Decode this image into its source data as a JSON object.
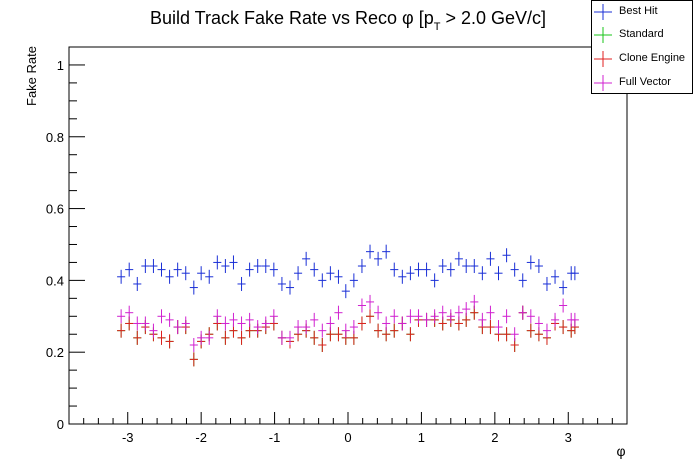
{
  "chart_data": {
    "type": "scatter",
    "title": "Build Track Fake Rate vs Reco φ [p",
    "title_sub": "T",
    "title_tail": " > 2.0 GeV/c]",
    "xlabel": "φ",
    "ylabel": "Fake Rate",
    "xlim": [
      -3.8,
      3.8
    ],
    "ylim": [
      0,
      1.05
    ],
    "xticks": [
      -3,
      -2,
      -1,
      0,
      1,
      2,
      3
    ],
    "yticks": [
      0,
      0.2,
      0.4,
      0.6,
      0.8,
      1
    ],
    "ytick_labels": [
      "0",
      "0.2",
      "0.4",
      "0.6",
      "0.8",
      "1"
    ],
    "grid": false,
    "legend_position": "top-right",
    "x": [
      -3.09,
      -2.98,
      -2.87,
      -2.76,
      -2.65,
      -2.54,
      -2.43,
      -2.32,
      -2.21,
      -2.1,
      -2.0,
      -1.89,
      -1.78,
      -1.67,
      -1.56,
      -1.45,
      -1.34,
      -1.23,
      -1.12,
      -1.01,
      -0.9,
      -0.79,
      -0.68,
      -0.57,
      -0.46,
      -0.35,
      -0.24,
      -0.13,
      -0.03,
      0.08,
      0.19,
      0.3,
      0.41,
      0.52,
      0.63,
      0.74,
      0.85,
      0.96,
      1.07,
      1.18,
      1.29,
      1.4,
      1.51,
      1.61,
      1.72,
      1.83,
      1.94,
      2.05,
      2.16,
      2.27,
      2.38,
      2.49,
      2.6,
      2.71,
      2.82,
      2.93,
      3.04,
      3.09
    ],
    "series": [
      {
        "name": "Best Hit",
        "color": "#1a2fd6",
        "values": [
          0.41,
          0.43,
          0.39,
          0.44,
          0.44,
          0.43,
          0.41,
          0.43,
          0.42,
          0.38,
          0.42,
          0.41,
          0.45,
          0.44,
          0.45,
          0.39,
          0.43,
          0.44,
          0.44,
          0.43,
          0.39,
          0.38,
          0.42,
          0.46,
          0.43,
          0.4,
          0.42,
          0.41,
          0.37,
          0.4,
          0.44,
          0.48,
          0.46,
          0.48,
          0.43,
          0.41,
          0.42,
          0.43,
          0.43,
          0.4,
          0.44,
          0.43,
          0.46,
          0.44,
          0.44,
          0.42,
          0.46,
          0.42,
          0.47,
          0.43,
          0.4,
          0.45,
          0.44,
          0.39,
          0.41,
          0.38,
          0.42,
          0.42
        ]
      },
      {
        "name": "Standard",
        "color": "#19c419",
        "values": [
          0.26,
          0.28,
          0.24,
          0.27,
          0.25,
          0.24,
          0.23,
          0.27,
          0.27,
          0.18,
          0.23,
          0.25,
          0.28,
          0.24,
          0.26,
          0.24,
          0.26,
          0.26,
          0.27,
          0.28,
          0.24,
          0.23,
          0.25,
          0.26,
          0.24,
          0.22,
          0.25,
          0.25,
          0.24,
          0.24,
          0.28,
          0.3,
          0.26,
          0.25,
          0.26,
          0.28,
          0.25,
          0.29,
          0.29,
          0.29,
          0.28,
          0.29,
          0.28,
          0.29,
          0.31,
          0.27,
          0.27,
          0.25,
          0.25,
          0.22,
          0.31,
          0.26,
          0.25,
          0.24,
          0.28,
          0.27,
          0.26,
          0.27
        ]
      },
      {
        "name": "Clone Engine",
        "color": "#e01f1f",
        "values": [
          0.26,
          0.28,
          0.24,
          0.27,
          0.25,
          0.24,
          0.23,
          0.27,
          0.27,
          0.18,
          0.23,
          0.25,
          0.28,
          0.24,
          0.26,
          0.24,
          0.26,
          0.26,
          0.27,
          0.28,
          0.24,
          0.23,
          0.25,
          0.26,
          0.24,
          0.22,
          0.25,
          0.25,
          0.24,
          0.24,
          0.28,
          0.3,
          0.26,
          0.25,
          0.26,
          0.28,
          0.25,
          0.29,
          0.29,
          0.29,
          0.28,
          0.29,
          0.28,
          0.29,
          0.31,
          0.27,
          0.27,
          0.25,
          0.25,
          0.22,
          0.31,
          0.26,
          0.25,
          0.24,
          0.28,
          0.27,
          0.26,
          0.27
        ]
      },
      {
        "name": "Full Vector",
        "color": "#d020d0",
        "values": [
          0.3,
          0.31,
          0.28,
          0.28,
          0.26,
          0.3,
          0.29,
          0.27,
          0.28,
          0.22,
          0.24,
          0.24,
          0.3,
          0.28,
          0.29,
          0.28,
          0.29,
          0.27,
          0.28,
          0.3,
          0.24,
          0.24,
          0.27,
          0.27,
          0.29,
          0.26,
          0.28,
          0.31,
          0.26,
          0.27,
          0.33,
          0.34,
          0.31,
          0.28,
          0.3,
          0.28,
          0.3,
          0.3,
          0.29,
          0.3,
          0.31,
          0.3,
          0.31,
          0.32,
          0.34,
          0.29,
          0.31,
          0.27,
          0.3,
          0.25,
          0.31,
          0.3,
          0.28,
          0.26,
          0.29,
          0.33,
          0.29,
          0.29
        ]
      }
    ]
  }
}
